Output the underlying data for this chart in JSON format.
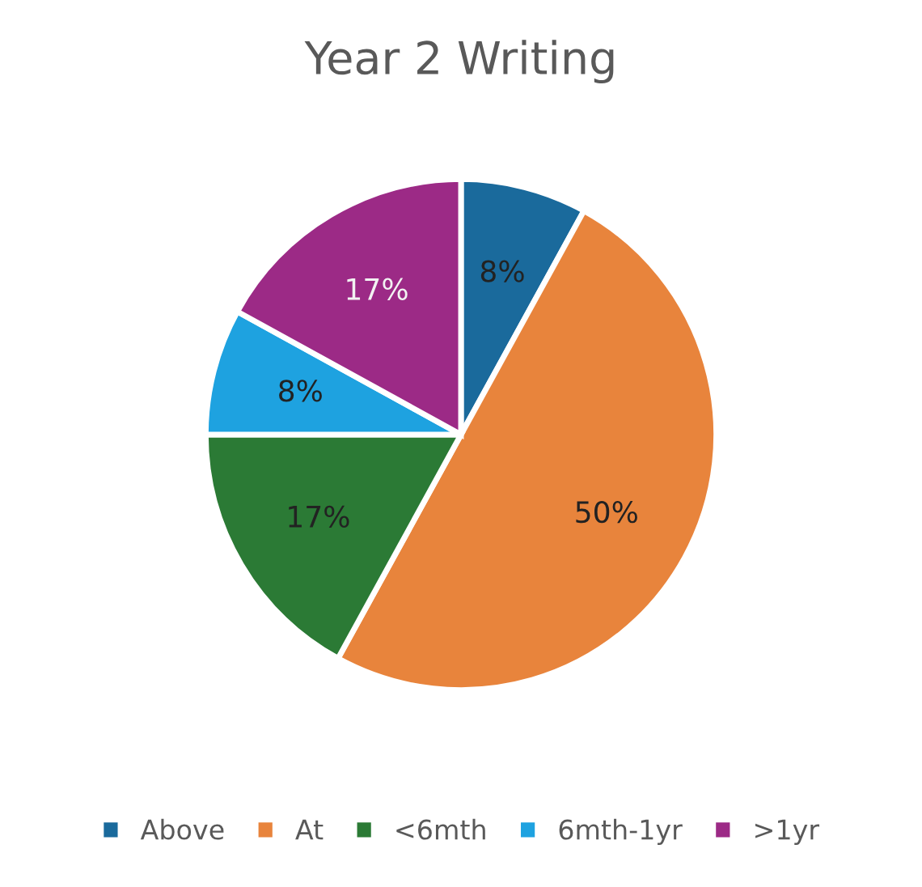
{
  "chart_data": {
    "type": "pie",
    "title": "Year 2 Writing",
    "categories": [
      "Above",
      "At",
      "<6mth",
      "6mth-1yr",
      ">1yr"
    ],
    "values": [
      8,
      50,
      17,
      8,
      17
    ],
    "colors": [
      "#1a6a9c",
      "#e8843c",
      "#2b7a35",
      "#1ea2e0",
      "#9c2a86"
    ],
    "value_labels": [
      "8%",
      "50%",
      "17%",
      "8%",
      "17%"
    ],
    "legend": "bottom"
  }
}
